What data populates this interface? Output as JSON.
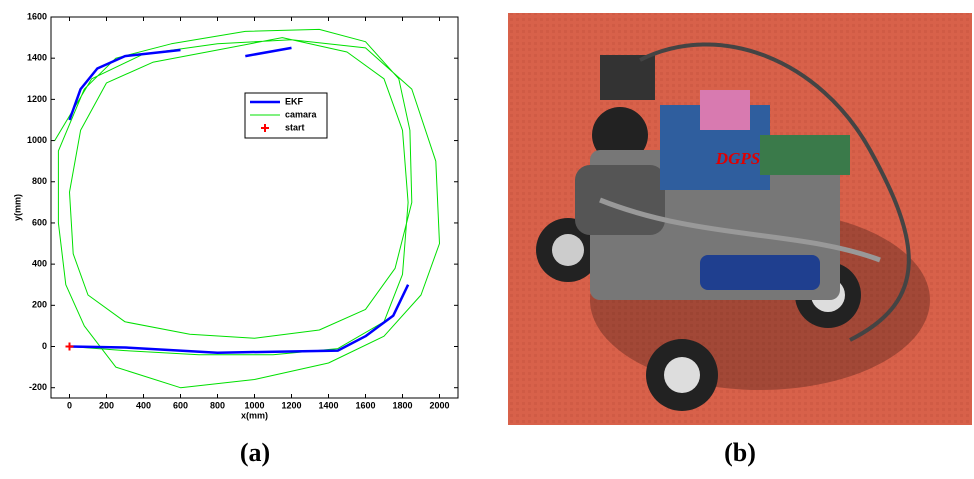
{
  "chart_data": {
    "type": "line",
    "xlabel": "x(mm)",
    "ylabel": "y(mm)",
    "xlim": [
      -100,
      2100
    ],
    "ylim": [
      -250,
      1600
    ],
    "xticks": [
      0,
      200,
      400,
      600,
      800,
      1000,
      1200,
      1400,
      1600,
      1800,
      2000
    ],
    "yticks": [
      -200,
      0,
      200,
      400,
      600,
      800,
      1000,
      1200,
      1400,
      1600
    ],
    "legend": "inside-center",
    "series": [
      {
        "name": "EKF",
        "color": "#0000ff",
        "marker": "none",
        "x": [
          0,
          300,
          800,
          1450,
          1600,
          1750,
          1830,
          null,
          0,
          60,
          150,
          300,
          600,
          null,
          950,
          1200
        ],
        "y": [
          0,
          -5,
          -30,
          -20,
          50,
          150,
          300,
          null,
          1100,
          1250,
          1350,
          1410,
          1440,
          null,
          1410,
          1450
        ]
      },
      {
        "name": "camara",
        "color": "#00e000",
        "marker": "none",
        "x": [
          0,
          300,
          700,
          1100,
          1450,
          1700,
          1800,
          1830,
          1800,
          1700,
          1500,
          1150,
          800,
          450,
          200,
          60,
          0,
          20,
          100,
          300,
          650,
          1000,
          1350,
          1600,
          1760,
          1850,
          1840,
          1780,
          1600,
          1350,
          950,
          550,
          250,
          80,
          -60,
          -60,
          -20,
          80,
          250,
          600,
          1000,
          1400,
          1700,
          1900,
          2000,
          1980,
          1850,
          1600,
          1200,
          800,
          400,
          120,
          -80
        ],
        "y": [
          0,
          -20,
          -40,
          -40,
          -10,
          120,
          350,
          700,
          1050,
          1300,
          1430,
          1500,
          1440,
          1380,
          1280,
          1050,
          750,
          450,
          250,
          120,
          60,
          40,
          80,
          180,
          380,
          700,
          1050,
          1300,
          1480,
          1540,
          1530,
          1470,
          1400,
          1250,
          950,
          600,
          300,
          100,
          -100,
          -200,
          -160,
          -80,
          50,
          250,
          500,
          900,
          1250,
          1450,
          1490,
          1470,
          1420,
          1300,
          1000
        ]
      },
      {
        "name": "start",
        "color": "#ff0000",
        "marker": "+",
        "x": [
          0
        ],
        "y": [
          0
        ]
      }
    ]
  },
  "photo": {
    "label": "DGPS"
  },
  "captions": [
    "(a)",
    "(b)"
  ]
}
